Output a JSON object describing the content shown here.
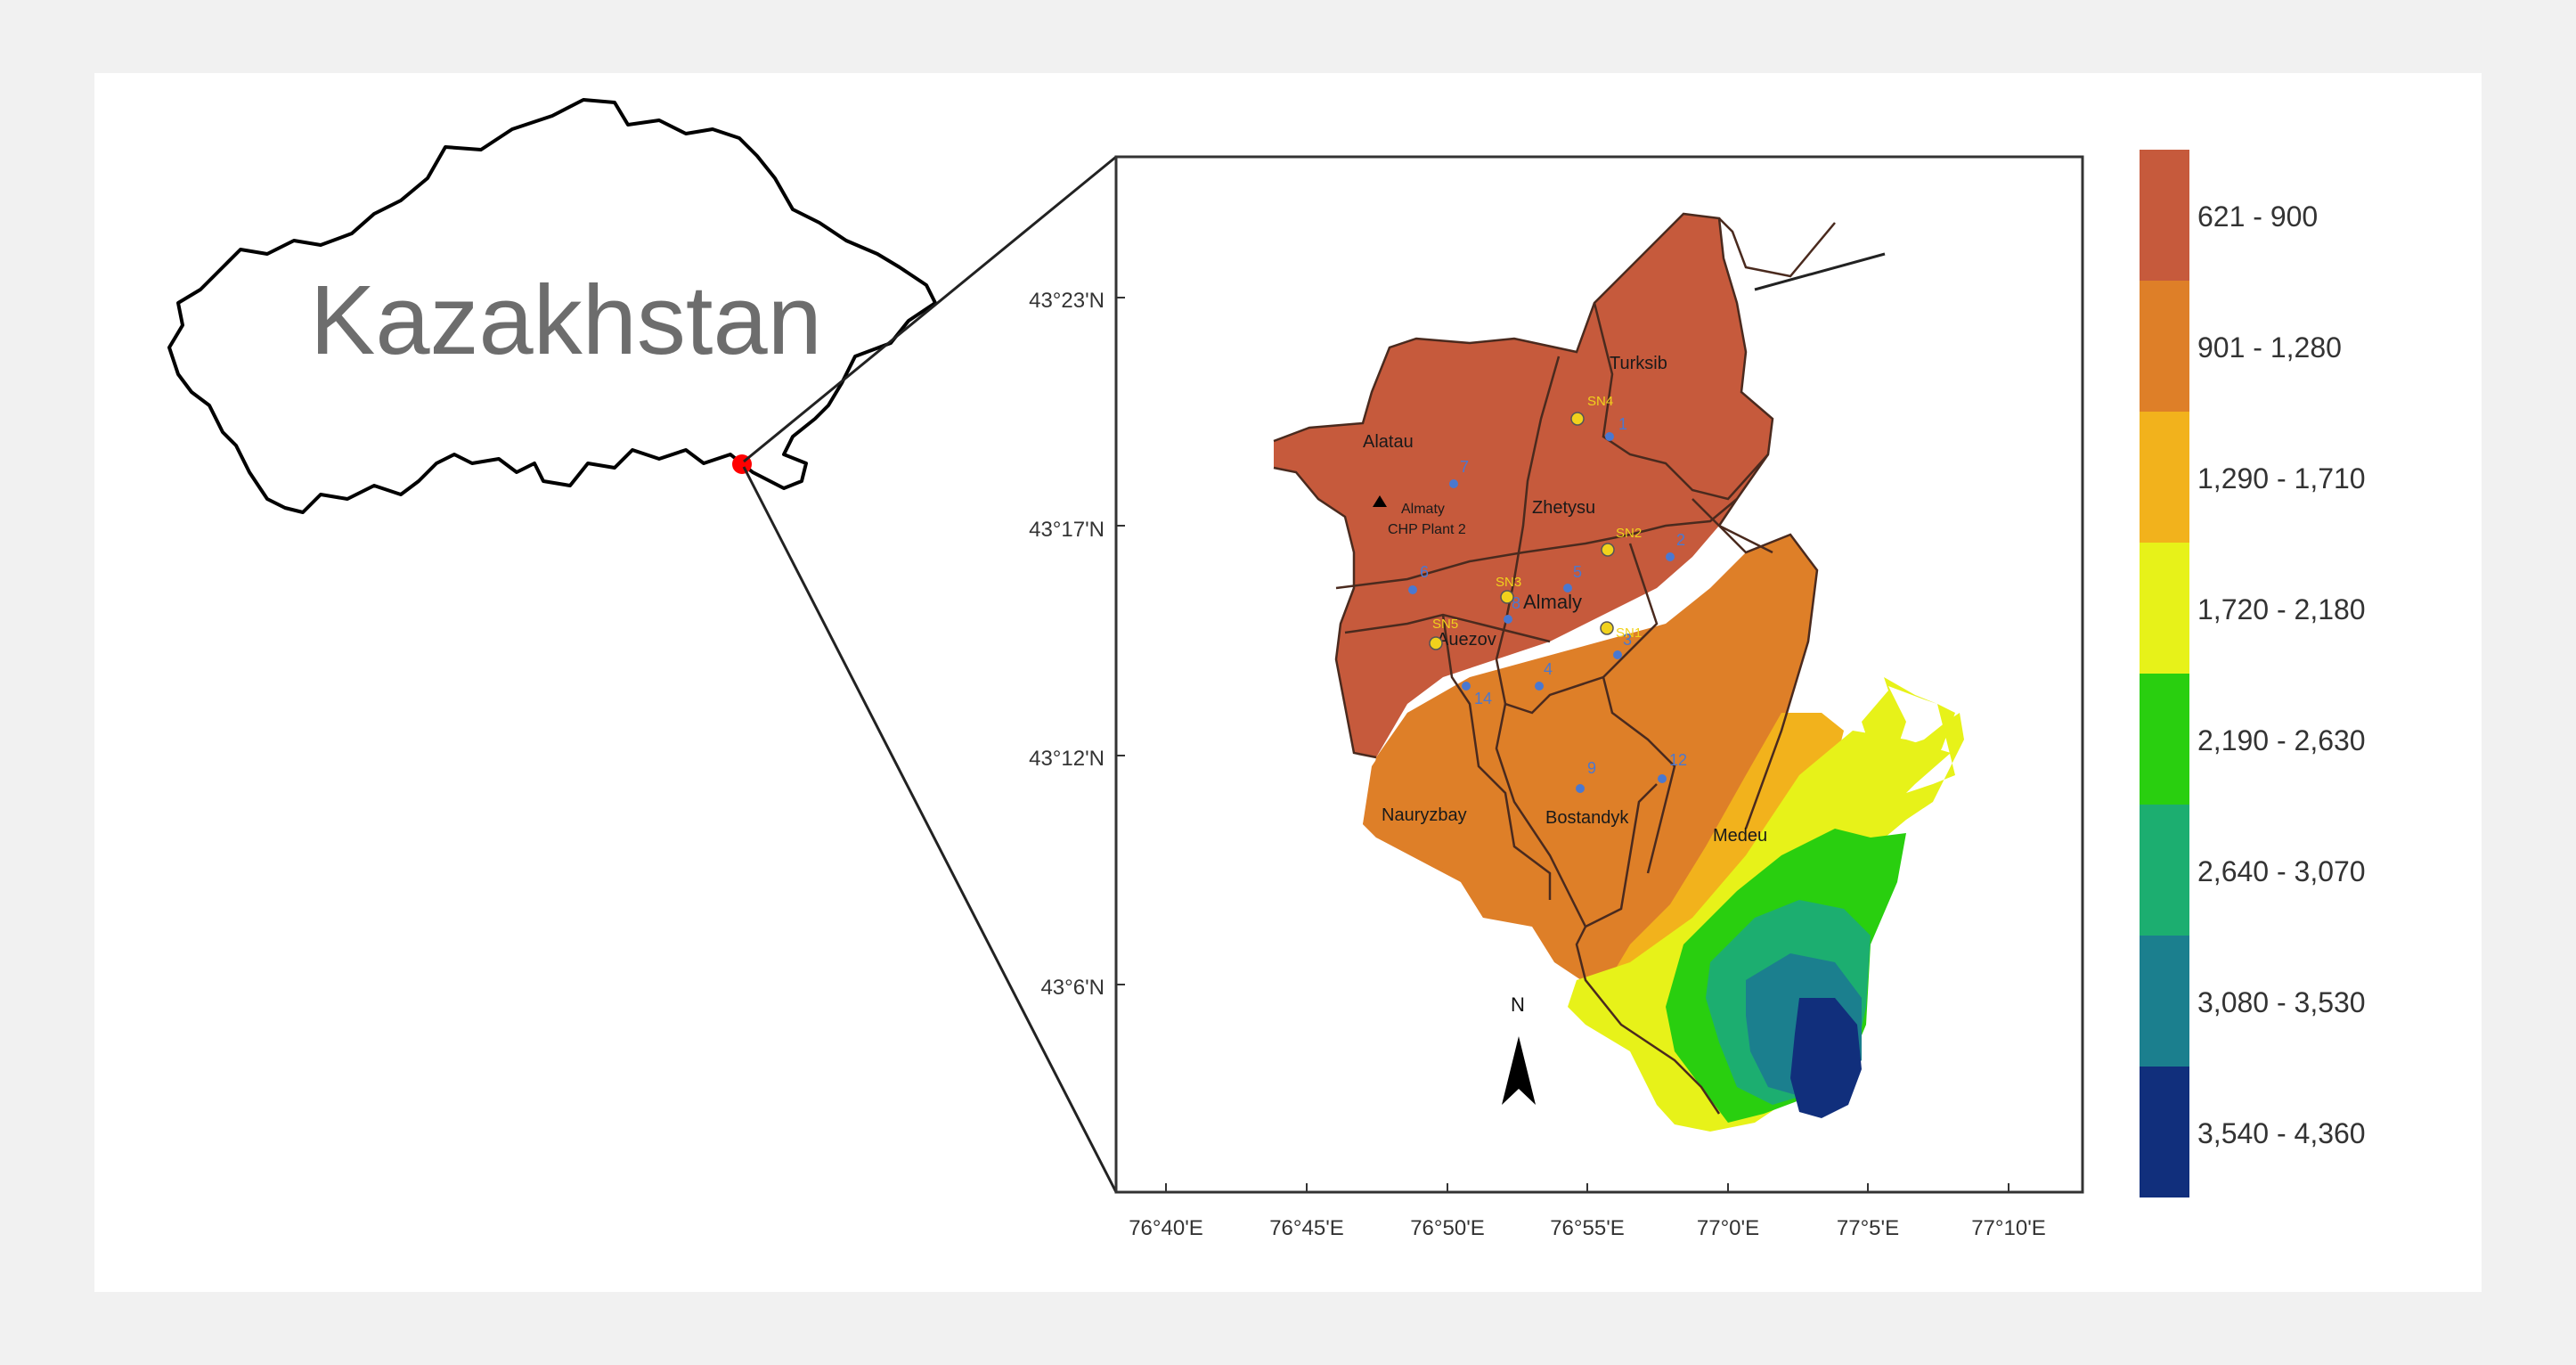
{
  "inset": {
    "country_label": "Kazakhstan"
  },
  "map": {
    "lat_ticks": [
      "43°23'N",
      "43°17'N",
      "43°12'N",
      "43°6'N"
    ],
    "lon_ticks": [
      "76°40'E",
      "76°45'E",
      "76°50'E",
      "76°55'E",
      "77°0'E",
      "77°5'E",
      "77°10'E"
    ],
    "districts": [
      "Turksib",
      "Alatau",
      "Zhetysu",
      "Almaly",
      "Auezov",
      "Nauryzbay",
      "Bostandyk",
      "Medeu"
    ],
    "plant_label_line1": "Almaty",
    "plant_label_line2": "CHP Plant 2",
    "north_label": "N",
    "blue_stations": [
      "1",
      "2",
      "3",
      "4",
      "5",
      "6",
      "7",
      "8",
      "9",
      "12",
      "14"
    ],
    "yellow_stations": [
      "SN4",
      "SN2",
      "SN3",
      "SN5",
      "SN1"
    ]
  },
  "legend": {
    "title": "",
    "classes": [
      {
        "label": "621 - 900",
        "color": "#c65a3c"
      },
      {
        "label": "901 - 1,280",
        "color": "#de7f28"
      },
      {
        "label": "1,290 - 1,710",
        "color": "#f2b21c"
      },
      {
        "label": "1,720 - 2,180",
        "color": "#e7f219"
      },
      {
        "label": "2,190 - 2,630",
        "color": "#29cf0f"
      },
      {
        "label": "2,640 - 3,070",
        "color": "#1cae70"
      },
      {
        "label": "3,080 - 3,530",
        "color": "#1b7f8e"
      },
      {
        "label": "3,540 - 4,360",
        "color": "#112f7c"
      }
    ]
  }
}
